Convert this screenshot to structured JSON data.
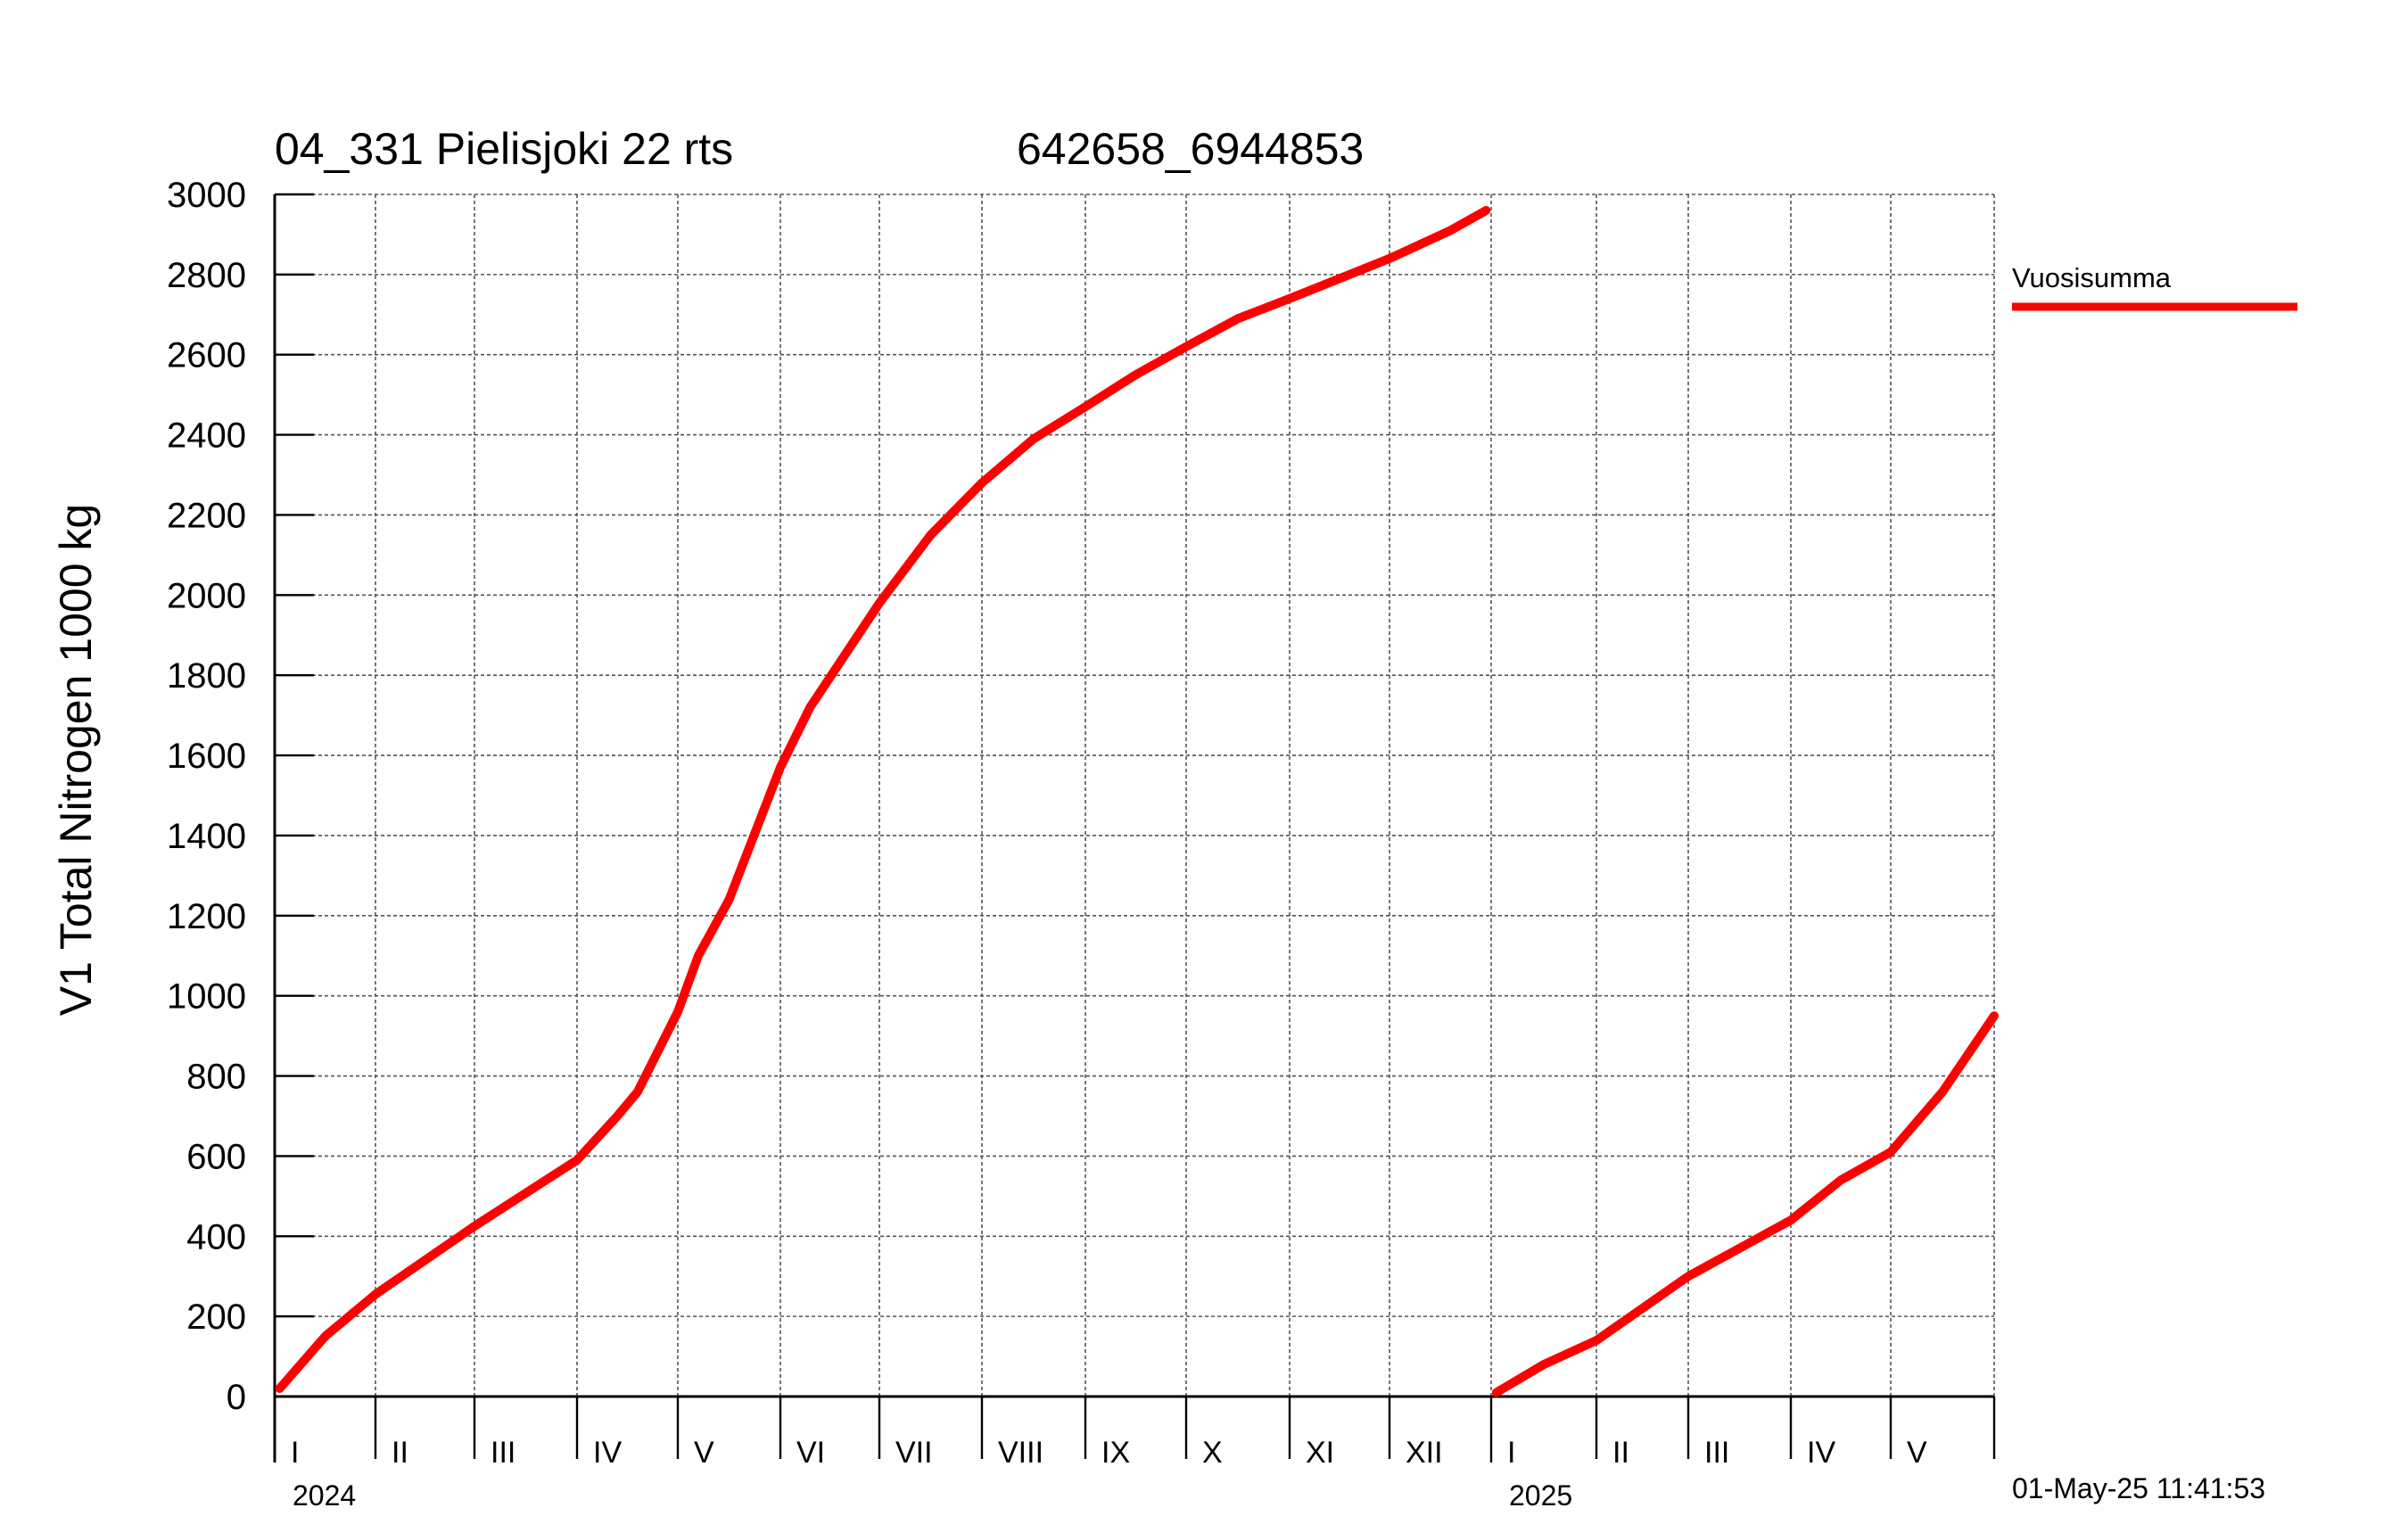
{
  "header": {
    "title": "04_331 Pielisjoki 22 rts",
    "code": "642658_6944853"
  },
  "chart_data": {
    "type": "line",
    "title": "04_331 Pielisjoki 22 rts",
    "subtitle": "642658_6944853",
    "ylabel": "V1 Total Nitrogen 1000 kg",
    "xlabel": "",
    "ylim": [
      0,
      3000
    ],
    "yticks": [
      0,
      200,
      400,
      600,
      800,
      1000,
      1200,
      1400,
      1600,
      1800,
      2000,
      2200,
      2400,
      2600,
      2800,
      3000
    ],
    "grid": true,
    "xaxis": {
      "unit": "month",
      "start": "2024-01",
      "end": "2025-05",
      "years": [
        {
          "label": "2024",
          "start_month": 0
        },
        {
          "label": "2025",
          "start_month": 12
        }
      ],
      "months": [
        {
          "label": "I",
          "index": 0
        },
        {
          "label": "II",
          "index": 1
        },
        {
          "label": "III",
          "index": 2
        },
        {
          "label": "IV",
          "index": 3
        },
        {
          "label": "V",
          "index": 4
        },
        {
          "label": "VI",
          "index": 5
        },
        {
          "label": "VII",
          "index": 6
        },
        {
          "label": "VIII",
          "index": 7
        },
        {
          "label": "IX",
          "index": 8
        },
        {
          "label": "X",
          "index": 9
        },
        {
          "label": "XI",
          "index": 10
        },
        {
          "label": "XII",
          "index": 11
        },
        {
          "label": "I",
          "index": 12
        },
        {
          "label": "II",
          "index": 13
        },
        {
          "label": "III",
          "index": 14
        },
        {
          "label": "IV",
          "index": 15
        },
        {
          "label": "V",
          "index": 16
        }
      ]
    },
    "legend": {
      "position": "top-right",
      "entries": [
        "Vuosisumma"
      ]
    },
    "series": [
      {
        "name": "Vuosisumma",
        "color": "#ff0000",
        "segments": [
          {
            "year": "2024",
            "months": [
              0.05,
              0.5,
              1.0,
              2.0,
              3.0,
              3.4,
              3.6,
              4.0,
              4.2,
              4.5,
              5.0,
              5.3,
              6.0,
              6.5,
              7.0,
              7.5,
              8.0,
              8.5,
              9.0,
              9.5,
              10.0,
              10.5,
              11.0,
              11.6,
              11.95
            ],
            "values": [
              20,
              150,
              255,
              425,
              590,
              700,
              760,
              960,
              1100,
              1240,
              1570,
              1720,
              1980,
              2150,
              2280,
              2390,
              2470,
              2550,
              2620,
              2690,
              2740,
              2790,
              2840,
              2910,
              2960
            ]
          },
          {
            "year": "2025",
            "months": [
              12.05,
              12.5,
              13.0,
              14.0,
              15.0,
              15.5,
              16.0,
              16.5,
              17.0
            ],
            "values": [
              10,
              80,
              140,
              300,
              440,
              540,
              610,
              760,
              950
            ]
          }
        ]
      }
    ]
  },
  "footer": {
    "timestamp": "01-May-25 11:41:53"
  }
}
